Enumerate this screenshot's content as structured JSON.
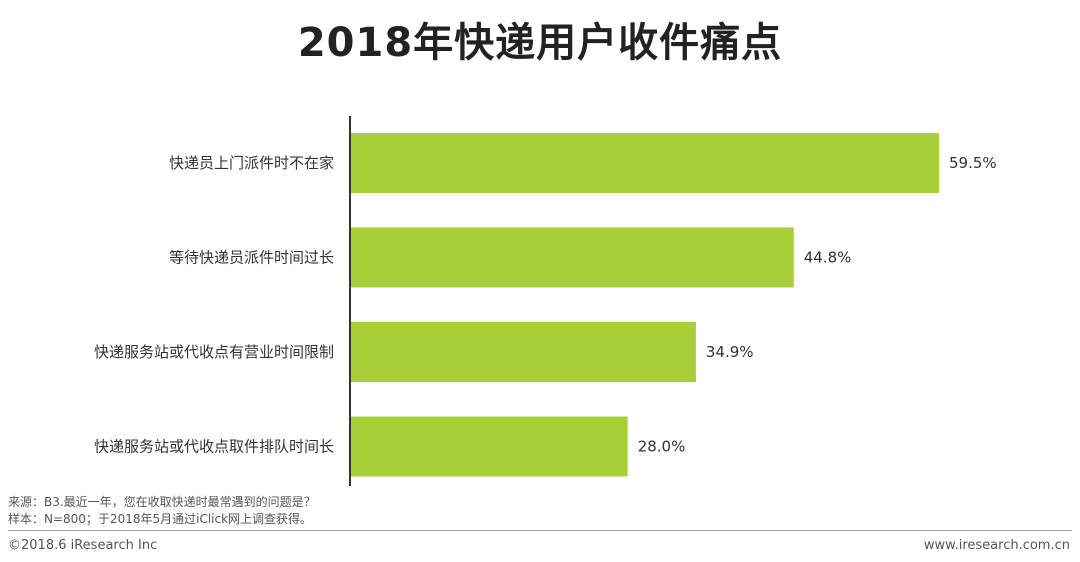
{
  "title": "2018年快递用户收件痛点",
  "chart_data": {
    "type": "bar",
    "orientation": "horizontal",
    "categories": [
      "快递员上门派件时不在家",
      "等待快递员派件时间过长",
      "快递服务站或代收点有营业时间限制",
      "快递服务站或代收点取件排队时间长"
    ],
    "values": [
      59.5,
      44.8,
      34.9,
      28.0
    ],
    "value_labels": [
      "59.5%",
      "44.8%",
      "34.9%",
      "28.0%"
    ],
    "unit": "%",
    "xlim": [
      0,
      60
    ],
    "bar_color": "#a9cf38",
    "grid": false,
    "legend": "none"
  },
  "notes": {
    "source": "来源：B3.最近一年，您在收取快递时最常遇到的问题是？",
    "sample": "样本：N=800；于2018年5月通过iClick网上调查获得。"
  },
  "footer": {
    "copyright": "©2018.6 iResearch Inc",
    "website": "www.iresearch.com.cn"
  }
}
